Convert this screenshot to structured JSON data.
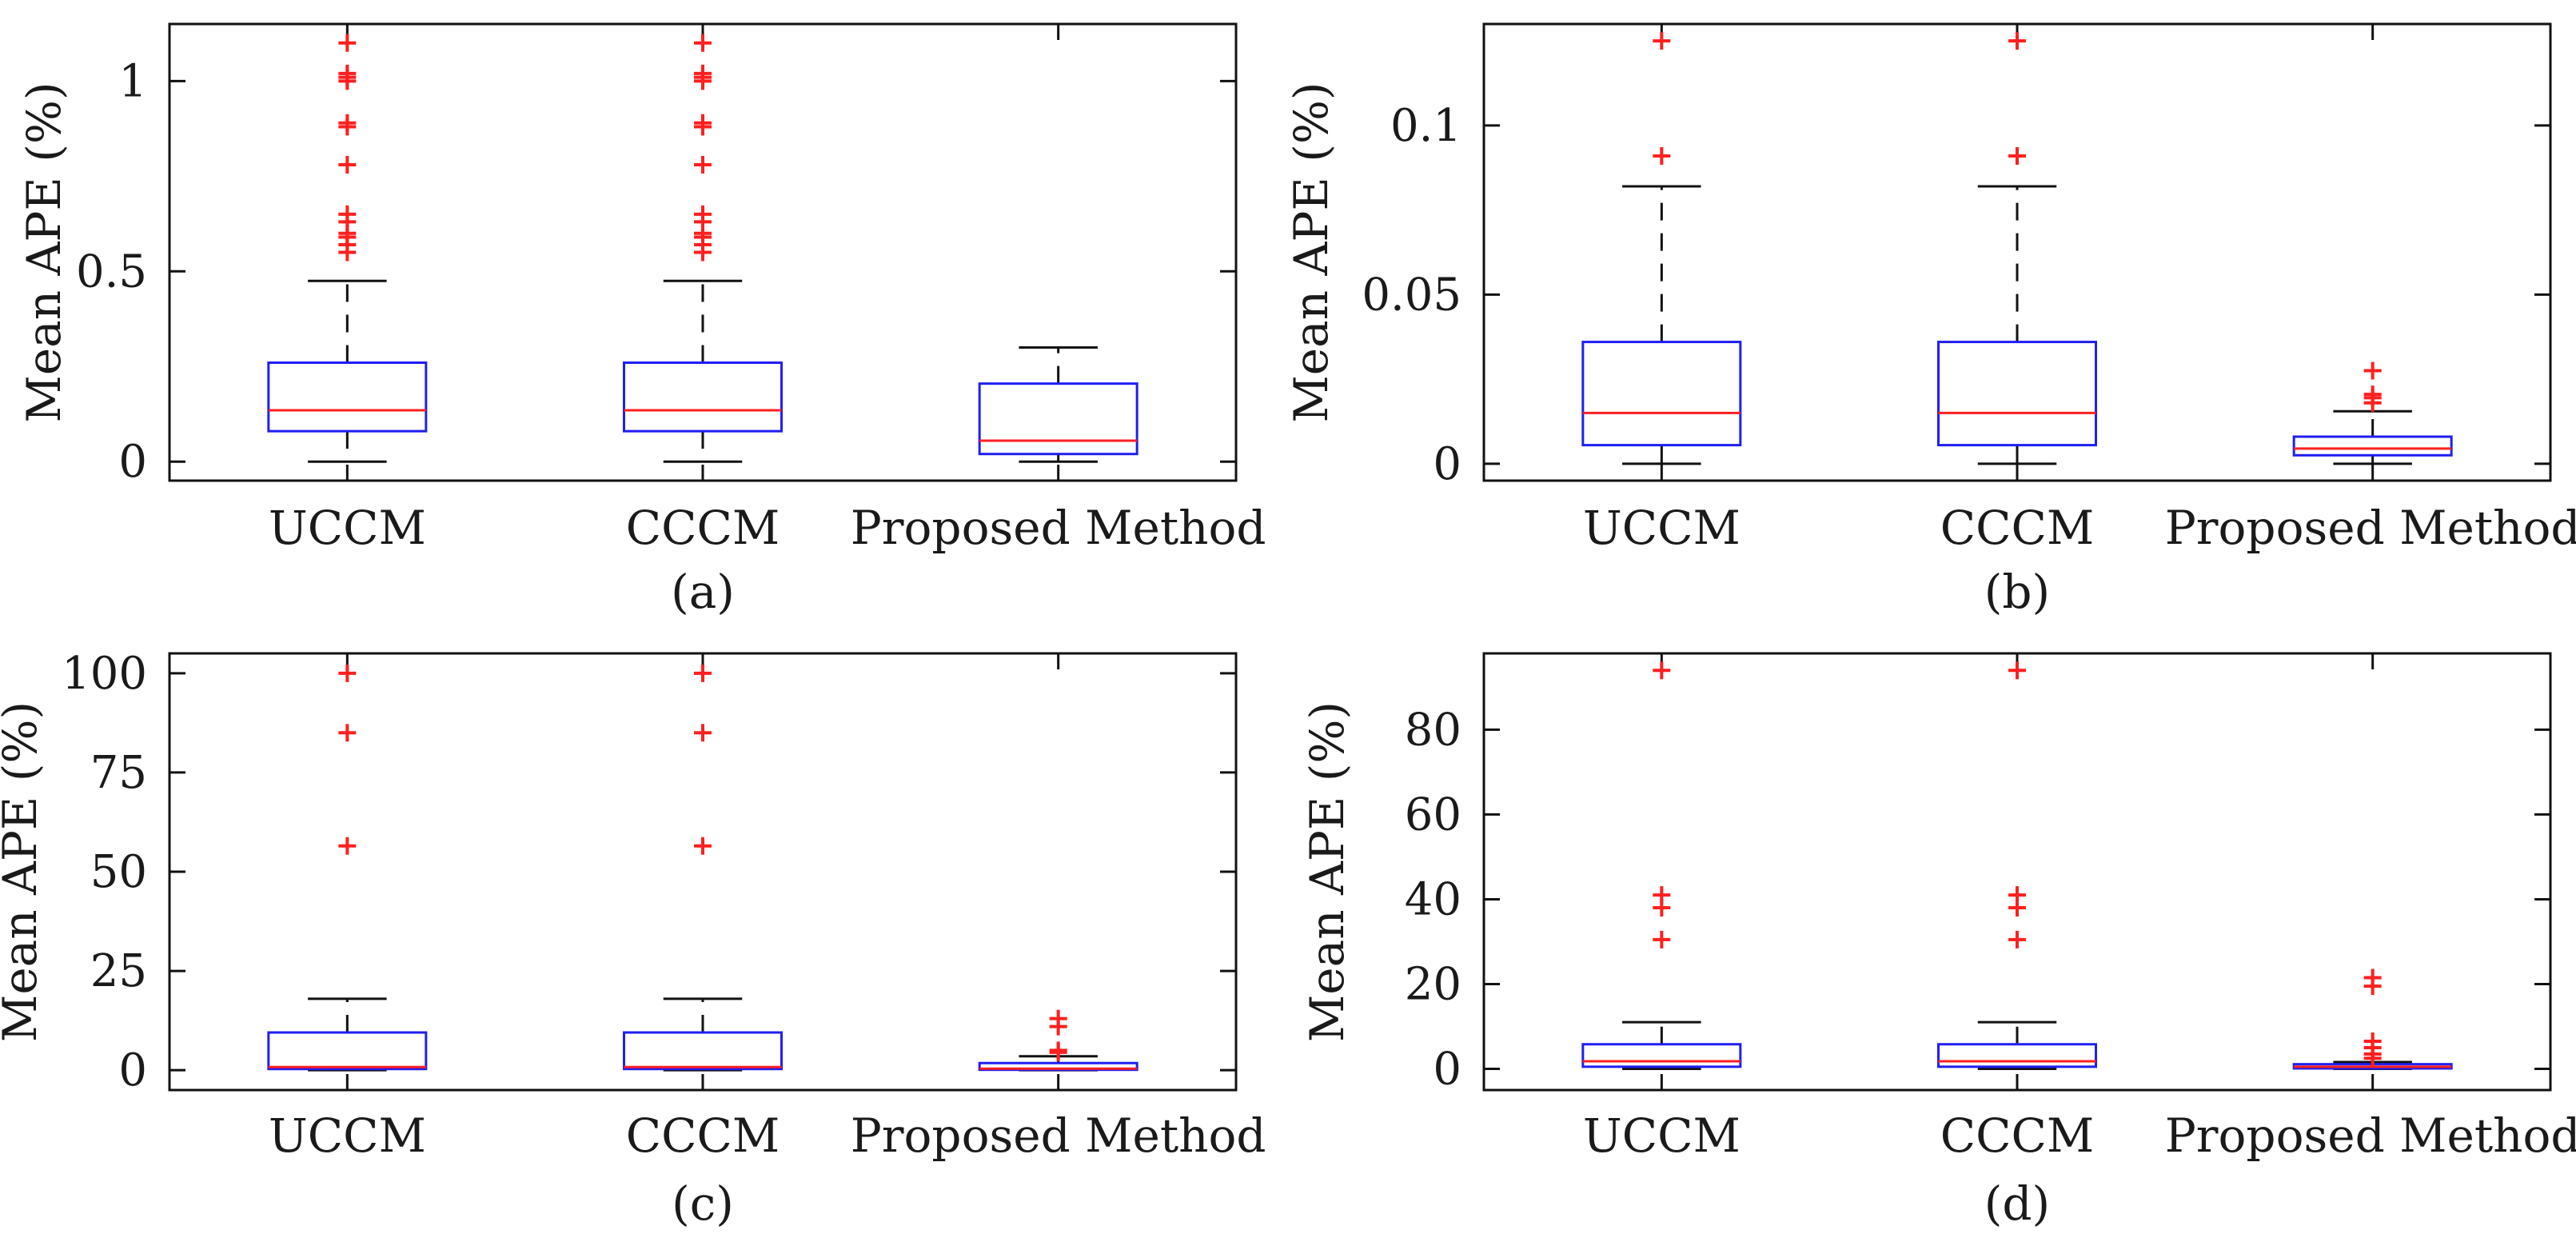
{
  "colors": {
    "box": "#1f1ff2",
    "median": "#ff1f1f",
    "outlier": "#ff1f1f",
    "whisker": "#111111",
    "axis": "#111111"
  },
  "chart_data": [
    {
      "type": "box",
      "panel_label": "(a)",
      "ylabel": "Mean APE (%)",
      "categories": [
        "UCCM",
        "CCCM",
        "Proposed Method"
      ],
      "ylim": [
        -0.05,
        1.15
      ],
      "yticks": [
        0,
        0.5,
        1
      ],
      "ytick_labels": [
        "0",
        "0.5",
        "1"
      ],
      "boxes": [
        {
          "low": 0.0,
          "q1": 0.08,
          "median": 0.135,
          "q3": 0.26,
          "high": 0.475,
          "outliers": [
            0.55,
            0.57,
            0.59,
            0.6,
            0.63,
            0.65,
            0.78,
            0.88,
            0.89,
            1.0,
            1.01,
            1.02,
            1.1
          ]
        },
        {
          "low": 0.0,
          "q1": 0.08,
          "median": 0.135,
          "q3": 0.26,
          "high": 0.475,
          "outliers": [
            0.55,
            0.57,
            0.59,
            0.6,
            0.63,
            0.65,
            0.78,
            0.88,
            0.89,
            1.0,
            1.01,
            1.02,
            1.1
          ]
        },
        {
          "low": 0.0,
          "q1": 0.02,
          "median": 0.055,
          "q3": 0.205,
          "high": 0.3,
          "outliers": []
        }
      ]
    },
    {
      "type": "box",
      "panel_label": "(b)",
      "ylabel": "Mean APE (%)",
      "categories": [
        "UCCM",
        "CCCM",
        "Proposed Method"
      ],
      "ylim": [
        -0.005,
        0.13
      ],
      "yticks": [
        0,
        0.05,
        0.1
      ],
      "ytick_labels": [
        "0",
        "0.05",
        "0.1"
      ],
      "boxes": [
        {
          "low": 0.0,
          "q1": 0.0055,
          "median": 0.015,
          "q3": 0.036,
          "high": 0.082,
          "outliers": [
            0.091,
            0.125
          ]
        },
        {
          "low": 0.0,
          "q1": 0.0055,
          "median": 0.015,
          "q3": 0.036,
          "high": 0.082,
          "outliers": [
            0.091,
            0.125
          ]
        },
        {
          "low": 0.0,
          "q1": 0.0025,
          "median": 0.0045,
          "q3": 0.008,
          "high": 0.0155,
          "outliers": [
            0.018,
            0.0195,
            0.0205,
            0.0275
          ]
        }
      ]
    },
    {
      "type": "box",
      "panel_label": "(c)",
      "ylabel": "Mean APE (%)",
      "categories": [
        "UCCM",
        "CCCM",
        "Proposed Method"
      ],
      "ylim": [
        -5,
        105
      ],
      "yticks": [
        0,
        25,
        50,
        75,
        100
      ],
      "ytick_labels": [
        "0",
        "25",
        "50",
        "75",
        "100"
      ],
      "boxes": [
        {
          "low": 0,
          "q1": 0.3,
          "median": 0.8,
          "q3": 9.5,
          "high": 18,
          "outliers": [
            56.5,
            85,
            100
          ]
        },
        {
          "low": 0,
          "q1": 0.3,
          "median": 0.8,
          "q3": 9.5,
          "high": 18,
          "outliers": [
            56.5,
            85,
            100
          ]
        },
        {
          "low": 0,
          "q1": 0.1,
          "median": 0.4,
          "q3": 1.8,
          "high": 3.5,
          "outliers": [
            4.5,
            5,
            11,
            13
          ]
        }
      ]
    },
    {
      "type": "box",
      "panel_label": "(d)",
      "ylabel": "Mean APE (%)",
      "categories": [
        "UCCM",
        "CCCM",
        "Proposed Method"
      ],
      "ylim": [
        -5,
        98
      ],
      "yticks": [
        0,
        20,
        40,
        60,
        80
      ],
      "ytick_labels": [
        "0",
        "20",
        "40",
        "60",
        "80"
      ],
      "boxes": [
        {
          "low": 0,
          "q1": 0.5,
          "median": 1.8,
          "q3": 5.8,
          "high": 11,
          "outliers": [
            30.5,
            38,
            41,
            94
          ]
        },
        {
          "low": 0,
          "q1": 0.5,
          "median": 1.8,
          "q3": 5.8,
          "high": 11,
          "outliers": [
            30.5,
            38,
            41,
            94
          ]
        },
        {
          "low": 0,
          "q1": 0.1,
          "median": 0.5,
          "q3": 1.1,
          "high": 1.6,
          "outliers": [
            2.5,
            3.5,
            5,
            6.5,
            19.5,
            21.5
          ]
        }
      ]
    }
  ]
}
